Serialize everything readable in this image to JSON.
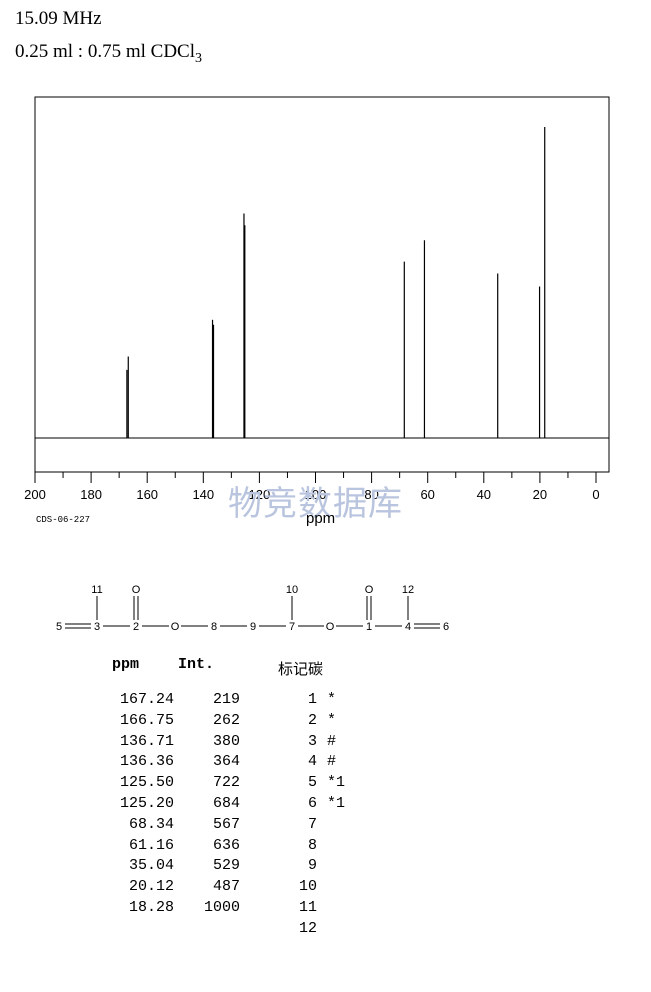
{
  "header": {
    "frequency": "15.09 MHz",
    "solvent_main": "0.25 ml : 0.75 ml CDCl",
    "solvent_sub": "3"
  },
  "chart_data": {
    "type": "line",
    "xlabel": "ppm",
    "xlim": [
      200,
      0
    ],
    "x_ticks": [
      "200",
      "180",
      "160",
      "140",
      "120",
      "100",
      "80",
      "60",
      "40",
      "20",
      "0"
    ],
    "peaks": [
      {
        "ppm": 167.24,
        "int": 219
      },
      {
        "ppm": 166.75,
        "int": 262
      },
      {
        "ppm": 136.71,
        "int": 380
      },
      {
        "ppm": 136.36,
        "int": 364
      },
      {
        "ppm": 125.5,
        "int": 722
      },
      {
        "ppm": 125.2,
        "int": 684
      },
      {
        "ppm": 68.34,
        "int": 567
      },
      {
        "ppm": 61.16,
        "int": 636
      },
      {
        "ppm": 35.04,
        "int": 529
      },
      {
        "ppm": 20.12,
        "int": 487
      },
      {
        "ppm": 18.28,
        "int": 1000
      }
    ]
  },
  "spectrum_code": "CDS-06-227",
  "watermark": "物竞数据库",
  "structure": {
    "atoms": [
      "5",
      "3",
      "2",
      "O",
      "8",
      "9",
      "7",
      "O",
      "1",
      "4",
      "6"
    ],
    "top": [
      "11",
      "O",
      "10",
      "O",
      "12"
    ]
  },
  "table": {
    "headers": [
      "ppm",
      "Int.",
      "标记碳"
    ],
    "ppm": [
      "167.24",
      "166.75",
      "136.71",
      "136.36",
      "125.50",
      "125.20",
      "68.34",
      "61.16",
      "35.04",
      "20.12",
      "18.28"
    ],
    "int": [
      "219",
      "262",
      "380",
      "364",
      "722",
      "684",
      "567",
      "636",
      "529",
      "487",
      "1000"
    ],
    "carbon": [
      "1",
      "2",
      "3",
      "4",
      "5",
      "6",
      "7",
      "8",
      "9",
      "10",
      "11",
      "12"
    ],
    "mark": [
      "*",
      "*",
      "#",
      "#",
      "*1",
      "*1",
      "",
      "",
      "",
      "",
      "",
      ""
    ]
  }
}
